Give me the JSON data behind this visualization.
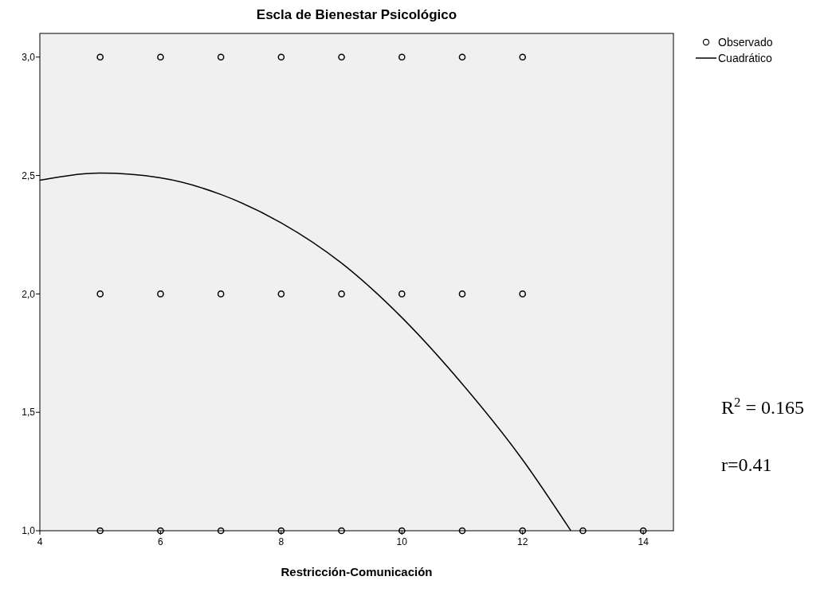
{
  "chart_data": {
    "type": "scatter",
    "title": "Escla de Bienestar Psicológico",
    "xlabel": "Restricción-Comunicación",
    "xlim": [
      4,
      14.5
    ],
    "xticks": [
      4,
      6,
      8,
      10,
      12,
      14
    ],
    "ylim": [
      1,
      3.1
    ],
    "yticks": [
      {
        "value": 1,
        "label": "1,0"
      },
      {
        "value": 1.5,
        "label": "1,5"
      },
      {
        "value": 2,
        "label": "2,0"
      },
      {
        "value": 2.5,
        "label": "2,5"
      },
      {
        "value": 3,
        "label": "3,0"
      }
    ],
    "grid": false,
    "legend": "top right",
    "annotations": [
      "R$^{2}$ = 0.165",
      "r=0.41"
    ],
    "series": [
      {
        "name": "Observado",
        "marker": "circle",
        "color": "#000000",
        "x": [
          5,
          6,
          7,
          8,
          9,
          10,
          11,
          12,
          5,
          6,
          7,
          8,
          9,
          10,
          11,
          12,
          5,
          6,
          7,
          8,
          9,
          10,
          11,
          12,
          13,
          14
        ],
        "values": [
          3,
          3,
          3,
          3,
          3,
          3,
          3,
          3,
          2,
          2,
          2,
          2,
          2,
          2,
          2,
          2,
          1,
          1,
          1,
          1,
          1,
          1,
          1,
          1,
          1,
          1
        ]
      },
      {
        "name": "Cuadrático",
        "type": "line",
        "marker": "none",
        "color": "#000000",
        "x": [
          4,
          5,
          6,
          7,
          8,
          9,
          10,
          11,
          12,
          12.8
        ],
        "values": [
          2.48,
          2.51,
          2.49,
          2.42,
          2.3,
          2.13,
          1.9,
          1.62,
          1.3,
          1
        ]
      }
    ]
  }
}
